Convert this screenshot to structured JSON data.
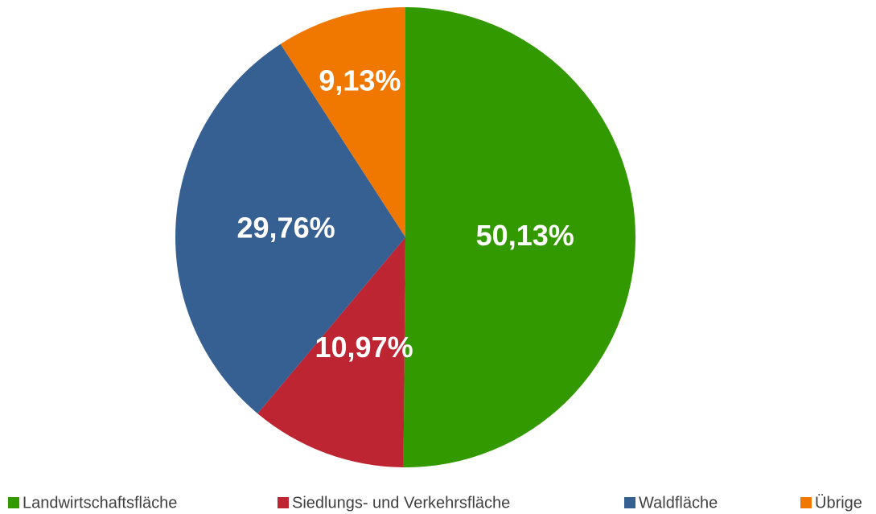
{
  "chart_data": {
    "type": "pie",
    "categories": [
      "Landwirtschaftsfläche",
      "Siedlungs- und Verkehrsfläche",
      "Waldfläche",
      "Übrige"
    ],
    "values": [
      50.13,
      10.97,
      29.76,
      9.13
    ],
    "value_labels": [
      "50,13%",
      "10,97%",
      "29,76%",
      "9,13%"
    ],
    "colors": [
      "#339900",
      "#be2532",
      "#376092",
      "#f07800"
    ],
    "legend": "bottom"
  }
}
